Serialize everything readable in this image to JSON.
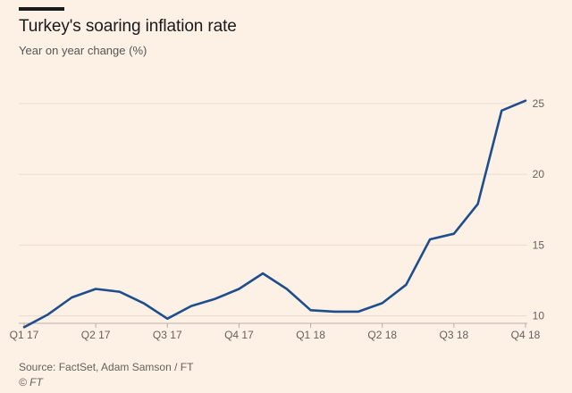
{
  "header": {
    "title": "Turkey's soaring inflation rate",
    "subtitle": "Year on year change (%)"
  },
  "footer": {
    "source": "Source: FactSet, Adam Samson / FT",
    "copyright": "© FT"
  },
  "colors": {
    "background": "#fdf1e6",
    "line": "#1f4e8c",
    "grid": "#e9dccf"
  },
  "chart_data": {
    "type": "line",
    "title": "Turkey's soaring inflation rate",
    "subtitle": "Year on year change (%)",
    "ylabel": "Year on year change (%)",
    "ylim": [
      9.6,
      26
    ],
    "yticks": [
      10,
      15,
      20,
      25
    ],
    "xticks": [
      "Q1 17",
      "Q2 17",
      "Q3 17",
      "Q4 17",
      "Q1 18",
      "Q2 18",
      "Q3 18",
      "Q4 18"
    ],
    "grid": true,
    "series": [
      {
        "values": [
          9.2,
          10.1,
          11.3,
          11.9,
          11.7,
          10.9,
          9.8,
          10.7,
          11.2,
          11.9,
          13.0,
          11.9,
          10.4,
          10.3,
          10.3,
          10.9,
          12.2,
          15.4,
          15.8,
          17.9,
          24.5,
          25.2
        ]
      }
    ]
  }
}
